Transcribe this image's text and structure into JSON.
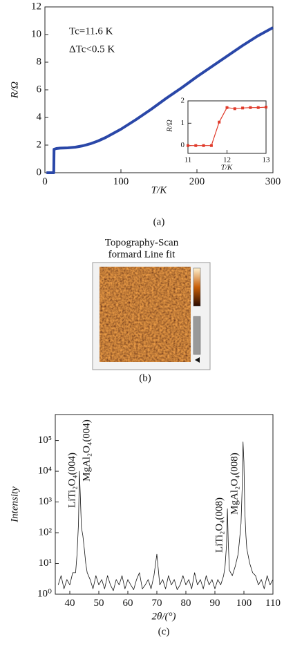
{
  "chart_data": [
    {
      "type": "line",
      "xlabel": "T/K",
      "ylabel": "R/Ω",
      "caption": "(a)",
      "annotations": [
        "Tc=11.6 K",
        "ΔTc<0.5 K"
      ],
      "xlim": [
        0,
        300
      ],
      "xticks": [
        0,
        100,
        200,
        300
      ],
      "ylim": [
        0,
        12
      ],
      "yticks": [
        0,
        2,
        4,
        6,
        8,
        10,
        12
      ],
      "x": [
        2,
        5,
        8,
        10,
        11,
        11.6,
        12,
        15,
        20,
        30,
        40,
        50,
        60,
        70,
        80,
        90,
        100,
        120,
        140,
        160,
        180,
        200,
        220,
        240,
        260,
        280,
        300
      ],
      "series": [
        {
          "color": "#2a47a8",
          "values": [
            0,
            0,
            0,
            0,
            0,
            0,
            1.7,
            1.75,
            1.78,
            1.8,
            1.85,
            1.95,
            2.1,
            2.3,
            2.55,
            2.85,
            3.15,
            3.85,
            4.6,
            5.4,
            6.15,
            6.95,
            7.7,
            8.45,
            9.2,
            9.9,
            10.5
          ]
        }
      ]
    },
    {
      "type": "line",
      "xlabel": "T/K",
      "ylabel": "R/Ω",
      "marker": "square",
      "xlim": [
        11,
        13
      ],
      "xticks": [
        11,
        12,
        13
      ],
      "ylim": [
        -0.35,
        2
      ],
      "yticks": [
        0,
        1,
        2
      ],
      "x": [
        11,
        11.2,
        11.4,
        11.6,
        11.8,
        12,
        12.2,
        12.4,
        12.6,
        12.8,
        13
      ],
      "series": [
        {
          "color": "#e03a2a",
          "values": [
            0,
            0,
            0,
            0,
            1.05,
            1.7,
            1.65,
            1.68,
            1.7,
            1.7,
            1.72
          ]
        }
      ]
    },
    {
      "type": "line",
      "xlabel": "2θ/(°)",
      "ylabel": "Intensity",
      "caption": "(c)",
      "log_y": true,
      "annotations": [
        "LiTi₂O₄(004)",
        "MgAl₂O₄(004)",
        "LiTi₂O₄(008)",
        "MgAl₂O₄(008)"
      ],
      "xlim": [
        35,
        110
      ],
      "xticks": [
        40,
        50,
        60,
        70,
        80,
        90,
        100,
        110
      ],
      "ylim": [
        1,
        700000
      ],
      "yticks": [
        {
          "value": 1,
          "label": "10⁰"
        },
        {
          "value": 10,
          "label": "10¹"
        },
        {
          "value": 100,
          "label": "10²"
        },
        {
          "value": 1000,
          "label": "10³"
        },
        {
          "value": 10000,
          "label": "10⁴"
        },
        {
          "value": 100000,
          "label": "10⁵"
        }
      ],
      "x": [
        36,
        37,
        38,
        39,
        40,
        41,
        42,
        42.5,
        43,
        43.3,
        43.6,
        44,
        44.5,
        45,
        45.5,
        46,
        47,
        48,
        49,
        50,
        51,
        52,
        53,
        54,
        55,
        56,
        57,
        58,
        59,
        60,
        61,
        62,
        63,
        64,
        65,
        66,
        67,
        68,
        69,
        70,
        71,
        72,
        73,
        74,
        75,
        76,
        77,
        78,
        79,
        80,
        81,
        82,
        83,
        84,
        85,
        86,
        87,
        88,
        89,
        90,
        91,
        92,
        93,
        93.5,
        94,
        94.3,
        94.6,
        95,
        96,
        97,
        98,
        98.5,
        99,
        99.4,
        99.7,
        100,
        100.3,
        100.7,
        101,
        102,
        103,
        104,
        105,
        106,
        107,
        108,
        109,
        110
      ],
      "series": [
        {
          "color": "#111111",
          "values": [
            2,
            4,
            1.5,
            3,
            2,
            5,
            5,
            20,
            200,
            10000,
            2000,
            150,
            80,
            30,
            10,
            5,
            3,
            1.5,
            4,
            2,
            3,
            1.5,
            4,
            2,
            1.3,
            3,
            2,
            4,
            1.5,
            3,
            2,
            1.4,
            3,
            5,
            1.5,
            2,
            3,
            1.5,
            4,
            20,
            2,
            3,
            1.5,
            4,
            2,
            3,
            1.4,
            2,
            4,
            2,
            3,
            1.5,
            5,
            2,
            3,
            1.5,
            4,
            2,
            3,
            1.5,
            3,
            2,
            4,
            8,
            40,
            600,
            50,
            6,
            4,
            8,
            20,
            60,
            200,
            3000,
            90000,
            20000,
            500,
            80,
            30,
            10,
            5,
            4,
            2,
            3,
            1.5,
            4,
            2,
            3
          ]
        }
      ]
    }
  ],
  "panel_b": {
    "title": [
      "Topography-Scan",
      "formard Line fit"
    ],
    "caption": "(b)"
  }
}
